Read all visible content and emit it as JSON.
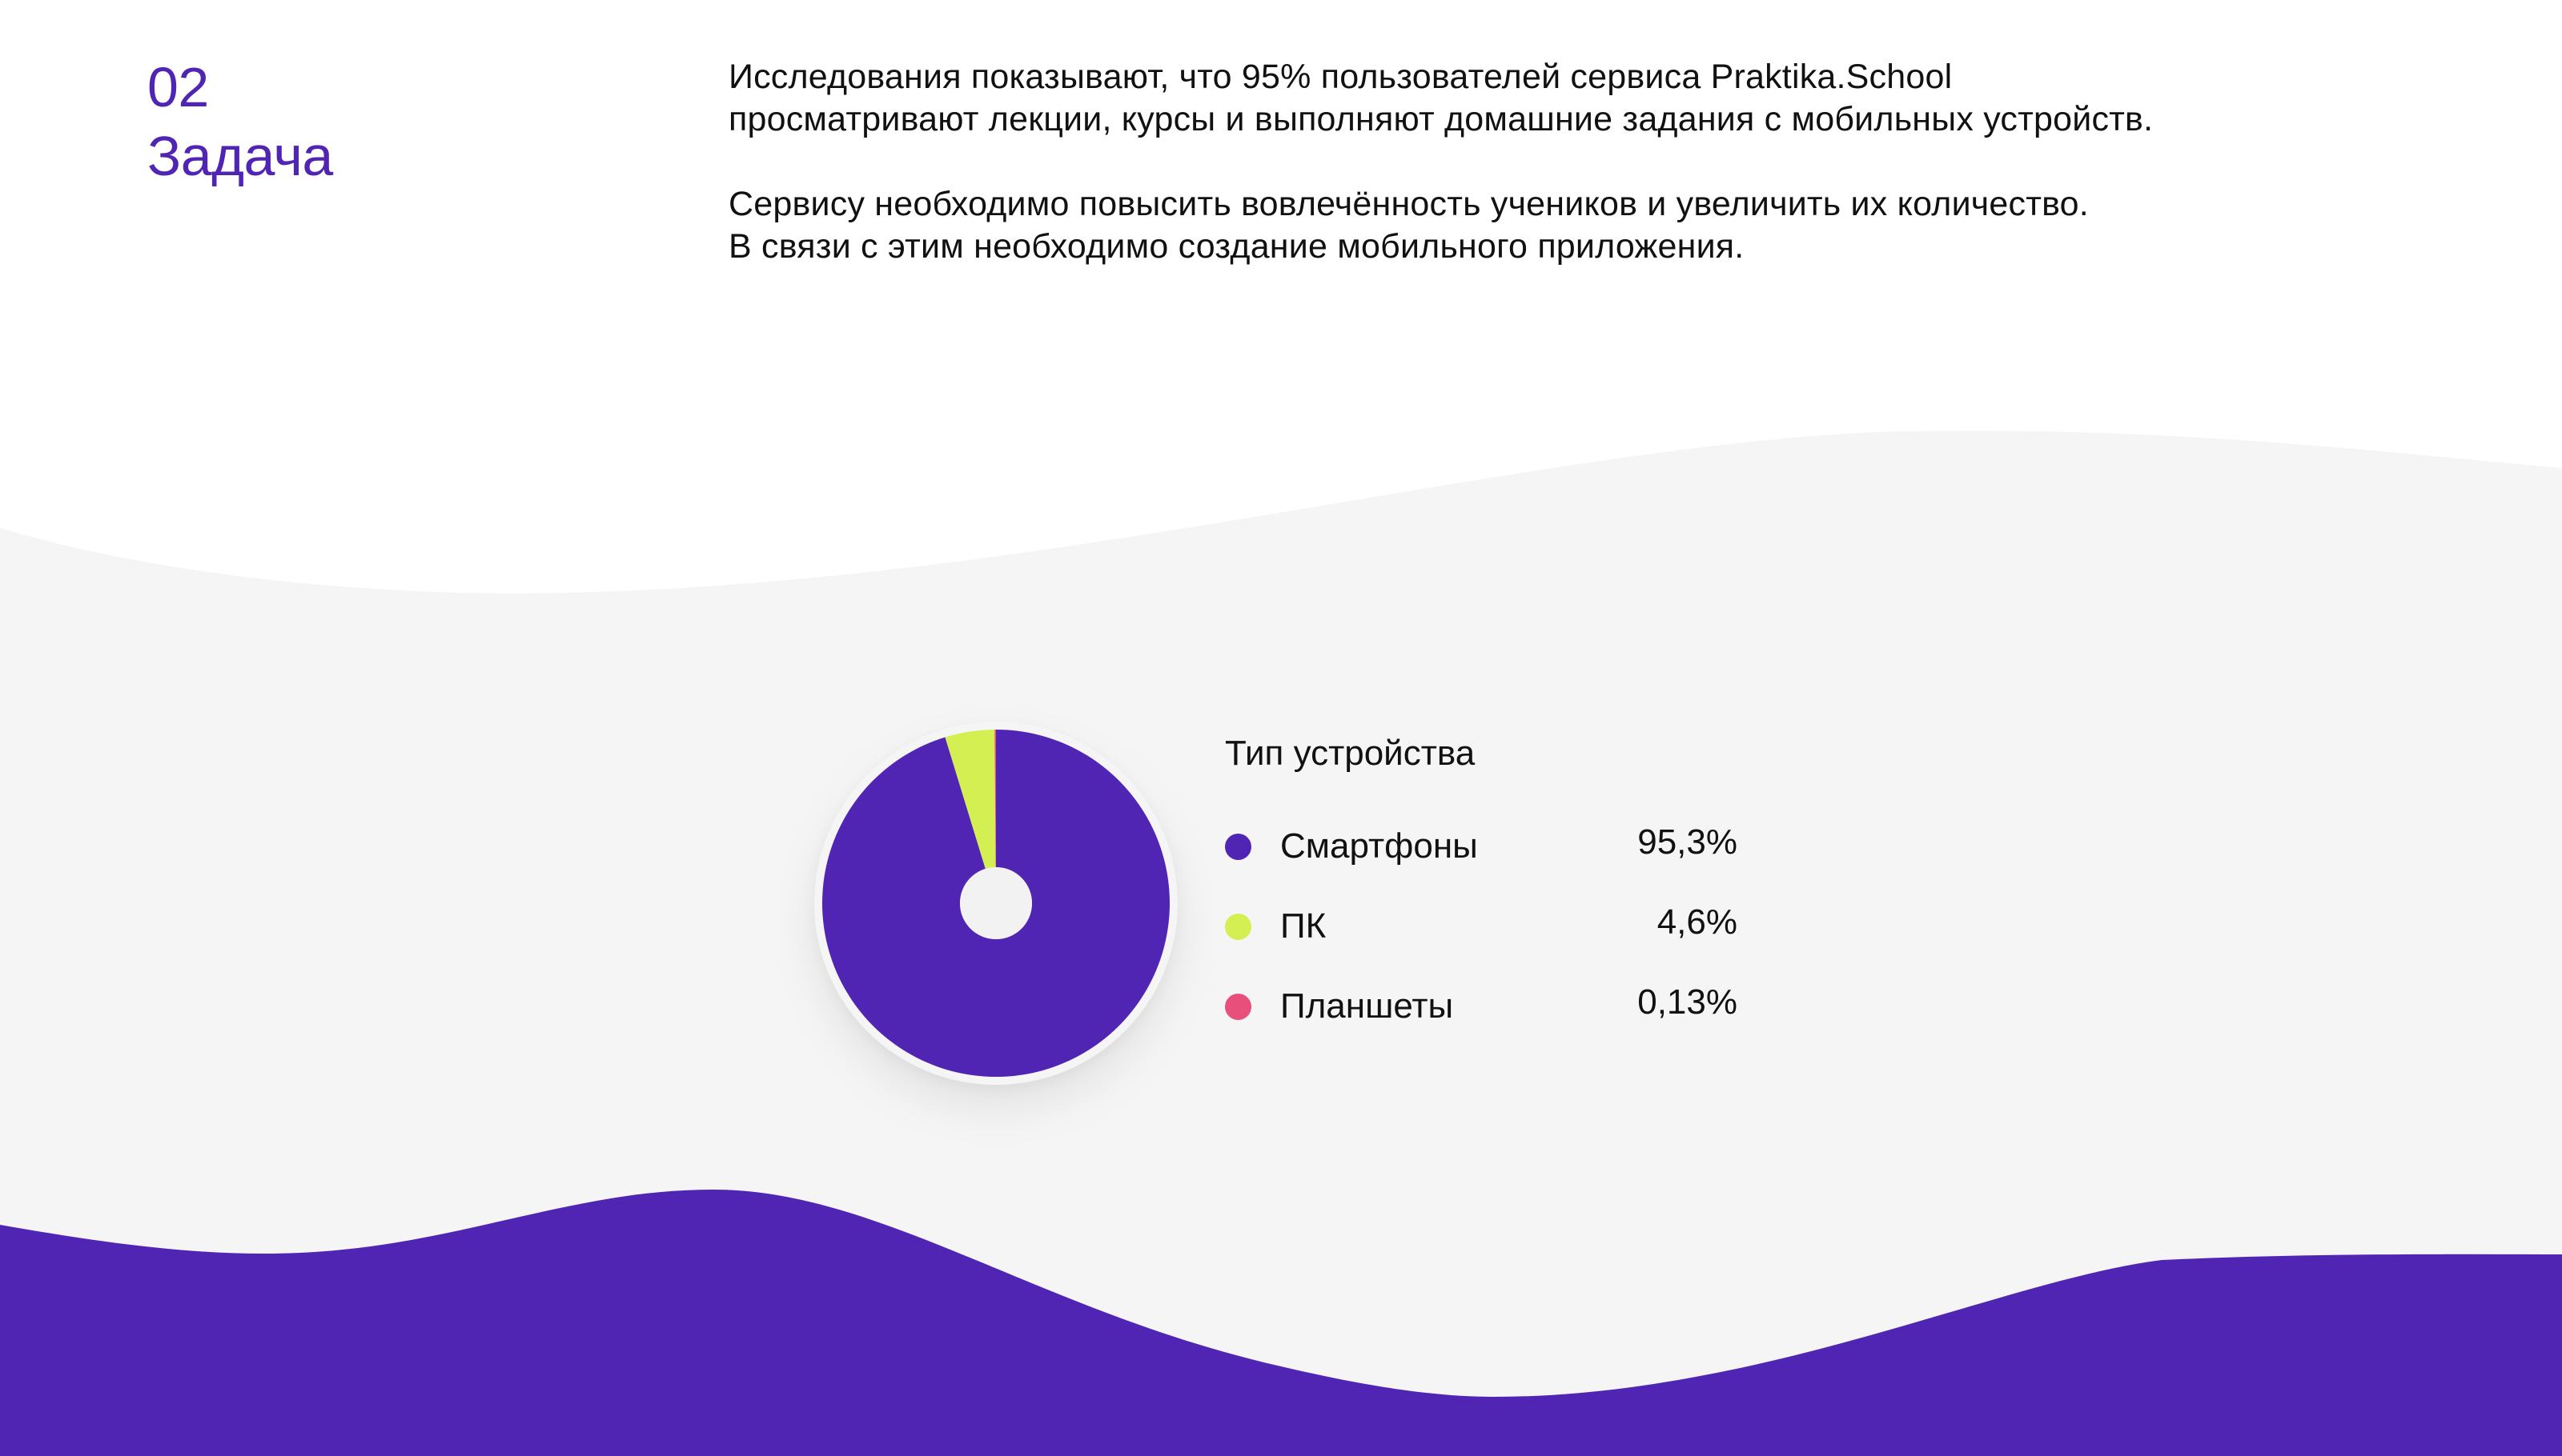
{
  "section": {
    "number": "02",
    "title": "Задача"
  },
  "intro": {
    "paragraphs": [
      {
        "lines": [
          "Исследования показывают, что 95% пользователей сервиса Praktika.School",
          "просматривают лекции, курсы и выполняют домашние задания с мобильных устройств."
        ]
      },
      {
        "lines": [
          "Сервису необходимо повысить вовлечённость учеников и увеличить их количество.",
          "В связи с этим необходимо создание мобильного приложения."
        ]
      }
    ]
  },
  "colors": {
    "accent": "#5025b4",
    "lime": "#d4ef52",
    "pink": "#e8507b",
    "panel_bg": "#f5f5f5",
    "page_bg": "#ffffff",
    "text": "#111111"
  },
  "chart_data": {
    "type": "pie",
    "variant": "donut",
    "title": "Тип устройства",
    "categories": [
      "Смартфоны",
      "ПК",
      "Планшеты"
    ],
    "values": [
      95.3,
      4.6,
      0.13
    ],
    "labels": [
      "95,3%",
      "4,6%",
      "0,13%"
    ],
    "colors": [
      "#5025b4",
      "#d4ef52",
      "#e8507b"
    ],
    "start_angle_deg": 0,
    "direction": "clockwise",
    "legend_position": "right",
    "unit": "%"
  },
  "legend": {
    "title": "Тип устройства",
    "items": [
      {
        "label": "Смартфоны",
        "value": "95,3%",
        "color": "#5025b4"
      },
      {
        "label": "ПК",
        "value": "4,6%",
        "color": "#d4ef52"
      },
      {
        "label": "Планшеты",
        "value": "0,13%",
        "color": "#e8507b"
      }
    ]
  }
}
